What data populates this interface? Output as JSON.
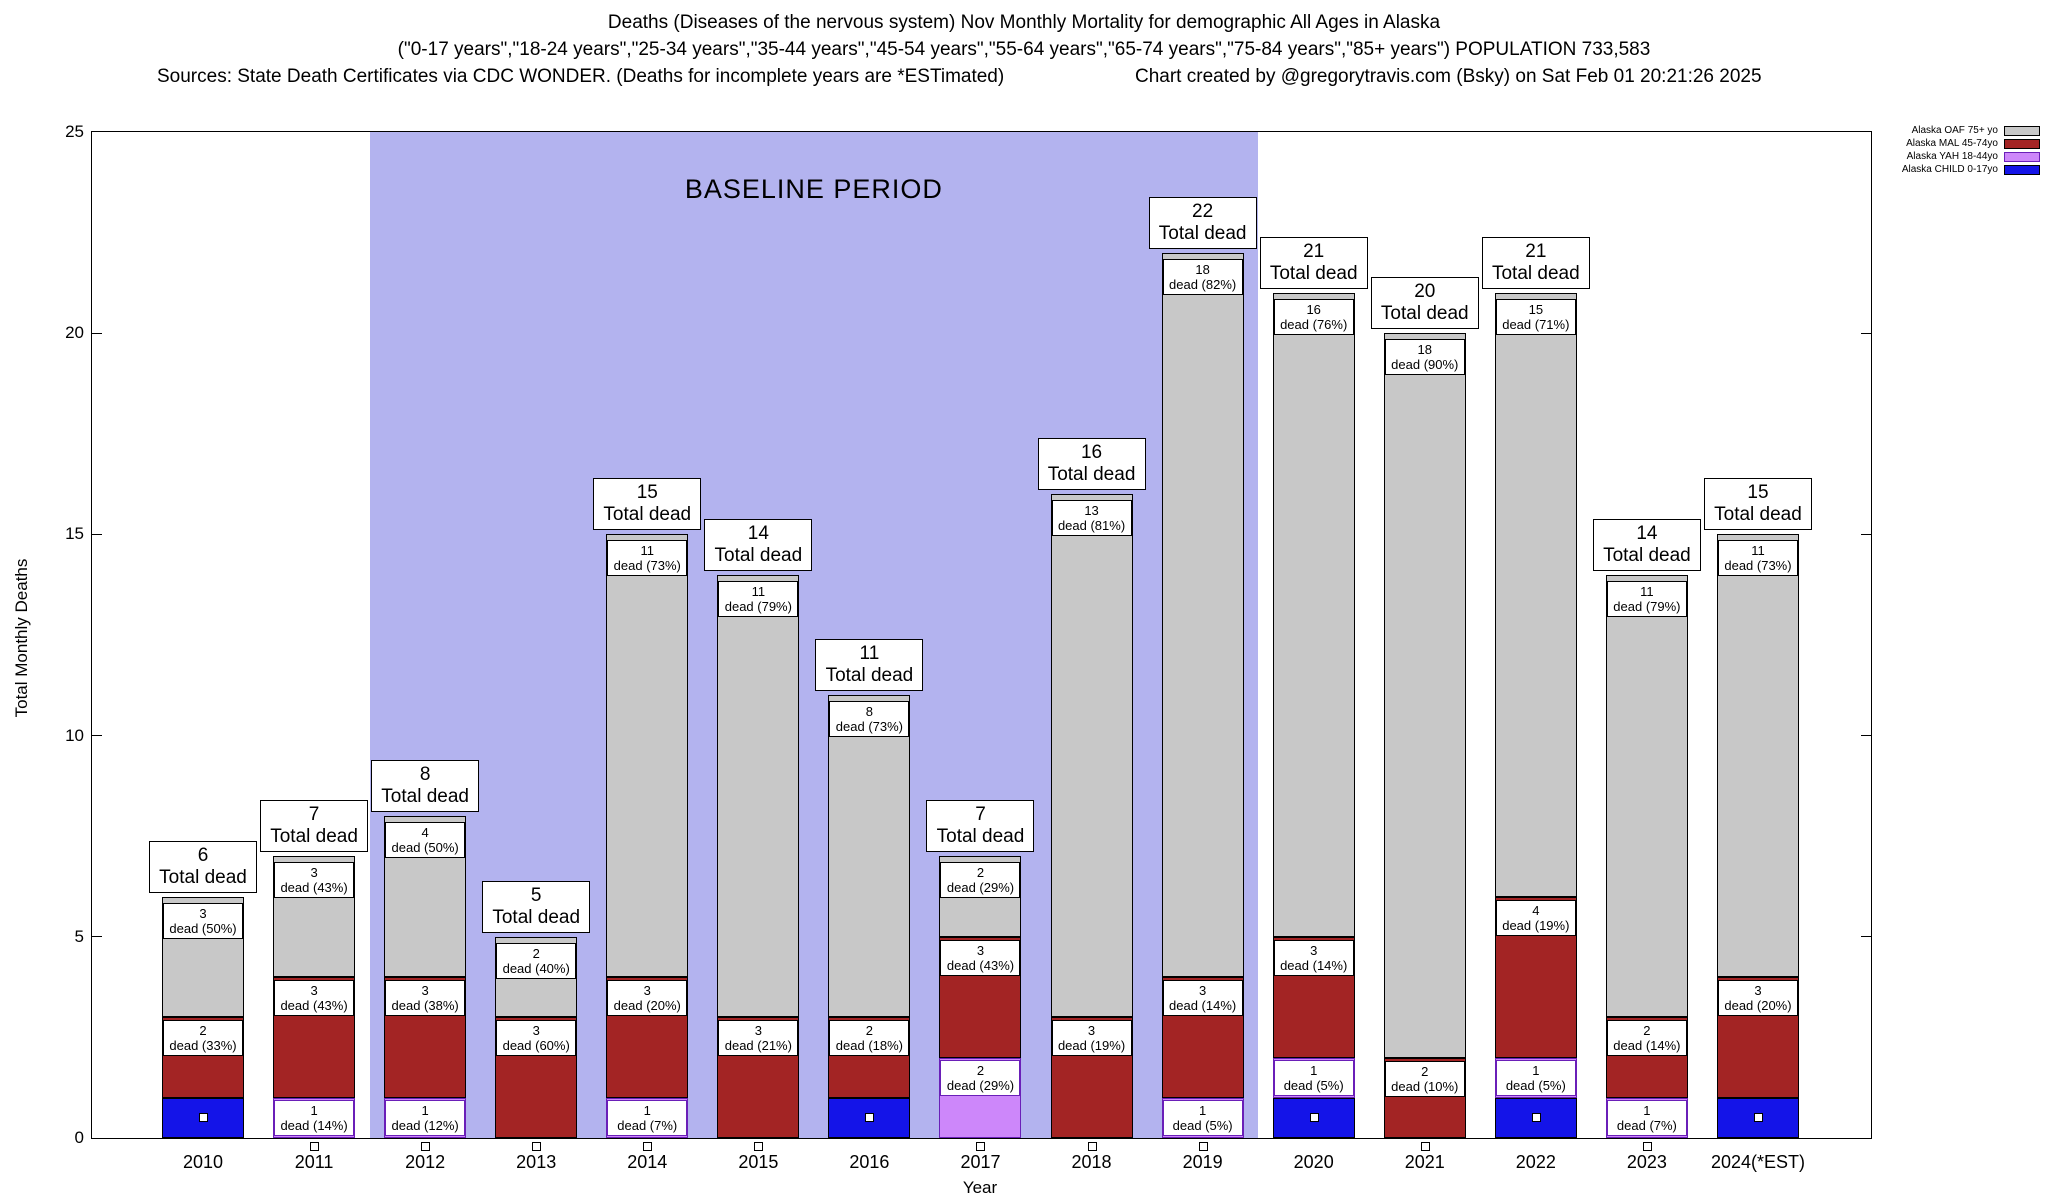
{
  "header": {
    "line1": "Deaths (Diseases of the nervous system) Nov Monthly Mortality for demographic All Ages in Alaska",
    "line2": "(\"0-17 years\",\"18-24 years\",\"25-34 years\",\"35-44 years\",\"45-54 years\",\"55-64 years\",\"65-74 years\",\"75-84 years\",\"85+ years\") POPULATION 733,583",
    "line3_left": "Sources: State Death Certificates via CDC WONDER. (Deaths for incomplete years are *ESTimated)",
    "line3_right": "Chart created by @gregorytravis.com (Bsky) on Sat Feb 01 20:21:26 2025"
  },
  "axes": {
    "ylabel": "Total Monthly Deaths",
    "xlabel": "Year",
    "yticks": [
      0,
      5,
      10,
      15,
      20,
      25
    ]
  },
  "baseline": {
    "label": "BASELINE PERIOD",
    "start_year": "2012",
    "end_year": "2019",
    "color": "#b3b3ef"
  },
  "legend": [
    {
      "label": "Alaska OAF 75+ yo",
      "color": "#c8c8c8",
      "border": "#000000"
    },
    {
      "label": "Alaska MAL 45-74yo",
      "color": "#a32424",
      "border": "#000000"
    },
    {
      "label": "Alaska YAH 18-44yo",
      "color": "#cd87fa",
      "border": "#6a1fb8"
    },
    {
      "label": "Alaska CHILD 0-17yo",
      "color": "#1414e8",
      "border": "#000000"
    }
  ],
  "chart_data": {
    "type": "bar",
    "stacked": true,
    "title": "Deaths (Diseases of the nervous system) Nov Monthly Mortality for demographic All Ages in Alaska",
    "xlabel": "Year",
    "ylabel": "Total Monthly Deaths",
    "ylim": [
      0,
      25
    ],
    "grid": false,
    "legend_position": "top-right",
    "categories": [
      "2010",
      "2011",
      "2012",
      "2013",
      "2014",
      "2015",
      "2016",
      "2017",
      "2018",
      "2019",
      "2020",
      "2021",
      "2022",
      "2023",
      "2024(*EST)"
    ],
    "totals": [
      6,
      7,
      8,
      5,
      15,
      14,
      11,
      7,
      16,
      22,
      21,
      20,
      21,
      14,
      15
    ],
    "total_label_suffix": "Total dead",
    "baseline_span": [
      2,
      9
    ],
    "series": [
      {
        "key": "child",
        "name": "Alaska CHILD 0-17yo",
        "color": "#1414e8",
        "border": "#000000",
        "values": [
          1,
          0,
          0,
          0,
          0,
          0,
          1,
          0,
          0,
          0,
          1,
          0,
          1,
          0,
          1
        ]
      },
      {
        "key": "yah",
        "name": "Alaska YAH 18-44yo",
        "color": "#cd87fa",
        "border": "#6a1fb8",
        "label_border": "#6a1fb8",
        "values": [
          0,
          1,
          1,
          0,
          1,
          0,
          0,
          2,
          0,
          1,
          1,
          0,
          1,
          1,
          0
        ],
        "labels": [
          "",
          "dead (14%)",
          "dead (12%)",
          "",
          "dead (7%)",
          "",
          "",
          "dead (29%)",
          "",
          "dead (5%)",
          "dead (5%)",
          "",
          "dead (5%)",
          "dead (7%)",
          ""
        ]
      },
      {
        "key": "mal",
        "name": "Alaska MAL 45-74yo",
        "color": "#a32424",
        "border": "#000000",
        "values": [
          2,
          3,
          3,
          3,
          3,
          3,
          2,
          3,
          3,
          3,
          3,
          2,
          4,
          2,
          3
        ],
        "labels": [
          "dead (33%)",
          "dead (43%)",
          "dead (38%)",
          "dead (60%)",
          "dead (20%)",
          "dead (21%)",
          "dead (18%)",
          "dead (43%)",
          "dead (19%)",
          "dead (14%)",
          "dead (14%)",
          "dead (10%)",
          "dead (19%)",
          "dead (14%)",
          "dead (20%)"
        ]
      },
      {
        "key": "oaf",
        "name": "Alaska OAF 75+ yo",
        "color": "#c8c8c8",
        "border": "#000000",
        "values": [
          3,
          3,
          4,
          2,
          11,
          11,
          8,
          2,
          13,
          18,
          16,
          18,
          15,
          11,
          11
        ],
        "labels": [
          "dead (50%)",
          "dead (43%)",
          "dead (50%)",
          "dead (40%)",
          "dead (73%)",
          "dead (79%)",
          "dead (73%)",
          "dead (29%)",
          "dead (81%)",
          "dead (82%)",
          "dead (76%)",
          "dead (90%)",
          "dead (71%)",
          "dead (79%)",
          "dead (73%)"
        ]
      }
    ]
  }
}
